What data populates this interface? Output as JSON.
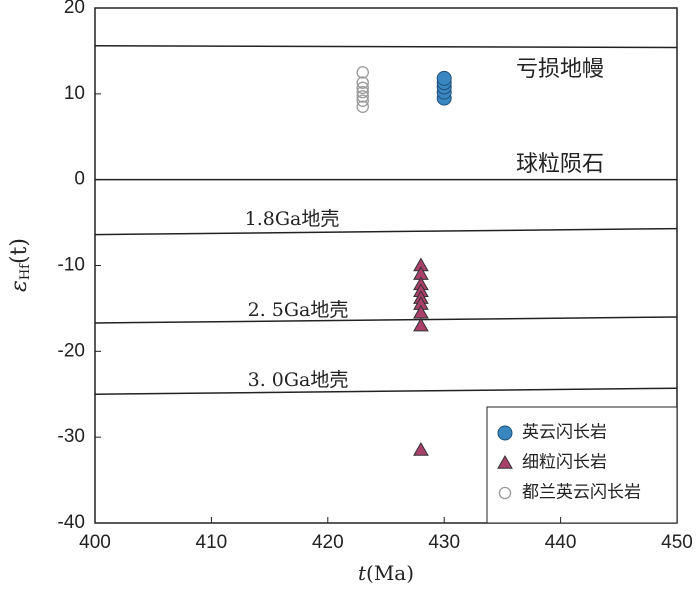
{
  "chart_data": {
    "type": "scatter",
    "x_label": {
      "italic": "t",
      "rest": "(Ma)"
    },
    "y_label": {
      "symbol": "ε",
      "subscript": "Hf",
      "suffix": "(t)"
    },
    "xlim": [
      400,
      450
    ],
    "xticks": [
      400,
      410,
      420,
      430,
      440,
      450
    ],
    "ylim": [
      -40,
      20
    ],
    "yticks": [
      -40,
      -30,
      -20,
      -10,
      0,
      10,
      20
    ],
    "reference_lines": [
      {
        "label": "亏损地幔",
        "values": [
          15.6,
          15.4
        ]
      },
      {
        "label": "球粒陨石",
        "values": [
          0,
          0
        ]
      },
      {
        "label": "1.8Ga地壳",
        "values": [
          -6.4,
          -5.7
        ]
      },
      {
        "label": "2. 5Ga地壳",
        "values": [
          -16.7,
          -16
        ]
      },
      {
        "label": "3. 0Ga地壳",
        "values": [
          -25,
          -24.3
        ]
      }
    ],
    "legend": "lower right",
    "series": [
      {
        "name": "英云闪长岩",
        "marker": "circle",
        "color": "#3a86c0",
        "x": [
          430,
          430,
          430,
          430,
          430
        ],
        "values": [
          9.5,
          10.2,
          10.8,
          11.3,
          11.8
        ]
      },
      {
        "name": "细粒闪长岩",
        "marker": "triangle",
        "color": "#a8406a",
        "x": [
          428,
          428,
          428,
          428,
          428,
          428,
          428,
          428,
          428
        ],
        "values": [
          -10,
          -11,
          -12.2,
          -13,
          -13.8,
          -14.5,
          -15.5,
          -17,
          -31.5
        ]
      },
      {
        "name": "都兰英云闪长岩",
        "marker": "open-circle",
        "color": "#999999",
        "x": [
          423,
          423,
          423,
          423,
          423,
          423,
          423
        ],
        "values": [
          8.5,
          9.2,
          9.7,
          10.2,
          10.7,
          11.3,
          12.5
        ]
      }
    ]
  }
}
